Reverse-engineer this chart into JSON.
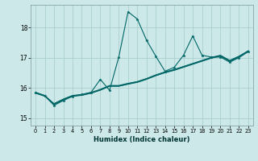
{
  "xlabel": "Humidex (Indice chaleur)",
  "bg_color": "#cce8e8",
  "grid_color": "#aad0d0",
  "line_color": "#006666",
  "xlim": [
    -0.5,
    23.5
  ],
  "ylim": [
    14.75,
    18.75
  ],
  "yticks": [
    15,
    16,
    17,
    18
  ],
  "xticks": [
    0,
    1,
    2,
    3,
    4,
    5,
    6,
    7,
    8,
    9,
    10,
    11,
    12,
    13,
    14,
    15,
    16,
    17,
    18,
    19,
    20,
    21,
    22,
    23
  ],
  "series": [
    [
      15.85,
      15.75,
      15.45,
      15.6,
      15.72,
      15.75,
      15.82,
      15.92,
      16.05,
      16.05,
      16.12,
      16.18,
      16.28,
      16.4,
      16.5,
      16.58,
      16.68,
      16.78,
      16.88,
      16.98,
      17.05,
      16.88,
      17.02,
      17.2
    ],
    [
      15.84,
      15.74,
      15.46,
      15.61,
      15.73,
      15.76,
      15.83,
      15.93,
      16.06,
      16.06,
      16.13,
      16.19,
      16.29,
      16.41,
      16.51,
      16.59,
      16.69,
      16.79,
      16.89,
      16.99,
      17.06,
      16.89,
      17.03,
      17.21
    ],
    [
      15.83,
      15.73,
      15.47,
      15.62,
      15.74,
      15.77,
      15.84,
      15.94,
      16.07,
      16.07,
      16.14,
      16.2,
      16.3,
      16.42,
      16.52,
      16.6,
      16.7,
      16.8,
      16.9,
      17.0,
      17.07,
      16.9,
      17.04,
      17.22
    ],
    [
      15.82,
      15.72,
      15.48,
      15.63,
      15.75,
      15.78,
      15.85,
      15.95,
      16.08,
      16.08,
      16.15,
      16.21,
      16.31,
      16.43,
      16.53,
      16.61,
      16.71,
      16.81,
      16.91,
      17.01,
      17.08,
      16.91,
      17.05,
      17.23
    ]
  ],
  "highlight_y": [
    15.85,
    15.73,
    15.42,
    15.58,
    15.72,
    15.78,
    15.85,
    16.28,
    15.92,
    17.02,
    18.52,
    18.28,
    17.58,
    17.05,
    16.55,
    16.68,
    17.08,
    17.72,
    17.08,
    17.02,
    17.02,
    16.85,
    17.0,
    17.2
  ]
}
